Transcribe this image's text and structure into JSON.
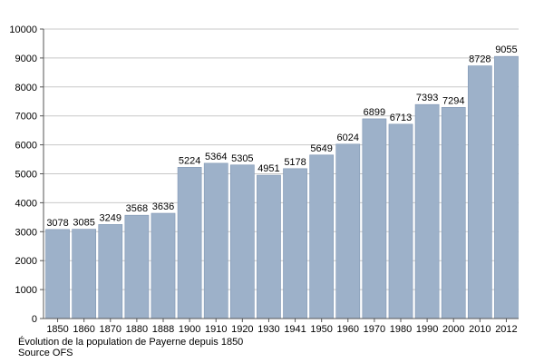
{
  "chart_data": {
    "type": "bar",
    "title": "",
    "xlabel": "",
    "ylabel": "",
    "categories": [
      "1850",
      "1860",
      "1870",
      "1880",
      "1888",
      "1900",
      "1910",
      "1920",
      "1930",
      "1941",
      "1950",
      "1960",
      "1970",
      "1980",
      "1990",
      "2000",
      "2010",
      "2012"
    ],
    "values": [
      3078,
      3085,
      3249,
      3568,
      3636,
      5224,
      5364,
      5305,
      4951,
      5178,
      5649,
      6024,
      6899,
      6713,
      7393,
      7294,
      8728,
      9055
    ],
    "ylim": [
      0,
      10000
    ],
    "yticks": [
      0,
      1000,
      2000,
      3000,
      4000,
      5000,
      6000,
      7000,
      8000,
      9000,
      10000
    ],
    "grid": true,
    "bar_color": "#9db1c9",
    "bar_edge_color": "#7f96b3"
  },
  "caption": {
    "line1": "Évolution de la population de Payerne depuis 1850",
    "line2": "Source OFS"
  }
}
